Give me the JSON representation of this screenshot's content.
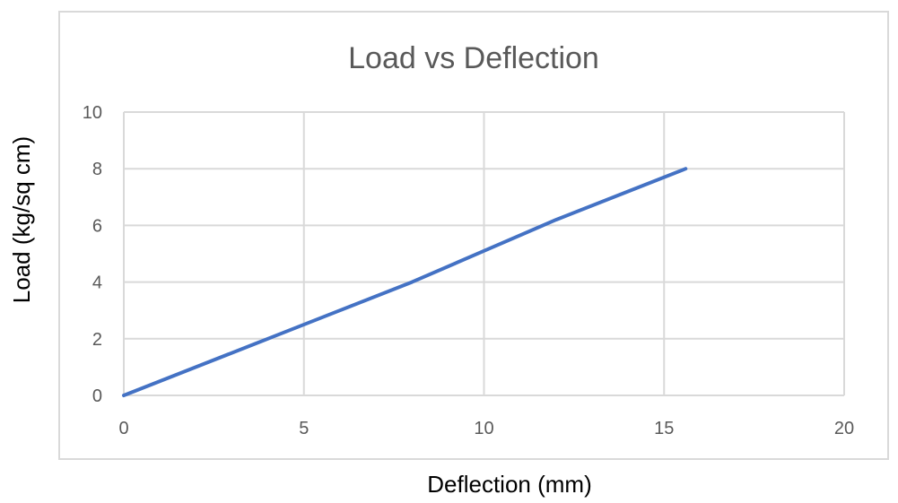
{
  "chart_data": {
    "type": "line",
    "title": "Load vs Deflection",
    "xlabel": "Deflection (mm)",
    "ylabel": "Load (kg/sq cm)",
    "xlim": [
      0,
      20
    ],
    "ylim": [
      0,
      10
    ],
    "x_ticks": [
      "0",
      "5",
      "10",
      "15",
      "20"
    ],
    "y_ticks": [
      "0",
      "2",
      "4",
      "6",
      "8",
      "10"
    ],
    "grid": true,
    "legend": "none",
    "series": [
      {
        "color": "#4472c4",
        "points": [
          {
            "x": 0,
            "y": 0
          },
          {
            "x": 2,
            "y": 1
          },
          {
            "x": 4,
            "y": 2
          },
          {
            "x": 6,
            "y": 3
          },
          {
            "x": 8,
            "y": 4
          },
          {
            "x": 10,
            "y": 5.1
          },
          {
            "x": 12,
            "y": 6.2
          },
          {
            "x": 14,
            "y": 7.2
          },
          {
            "x": 15.6,
            "y": 8
          }
        ]
      }
    ]
  }
}
